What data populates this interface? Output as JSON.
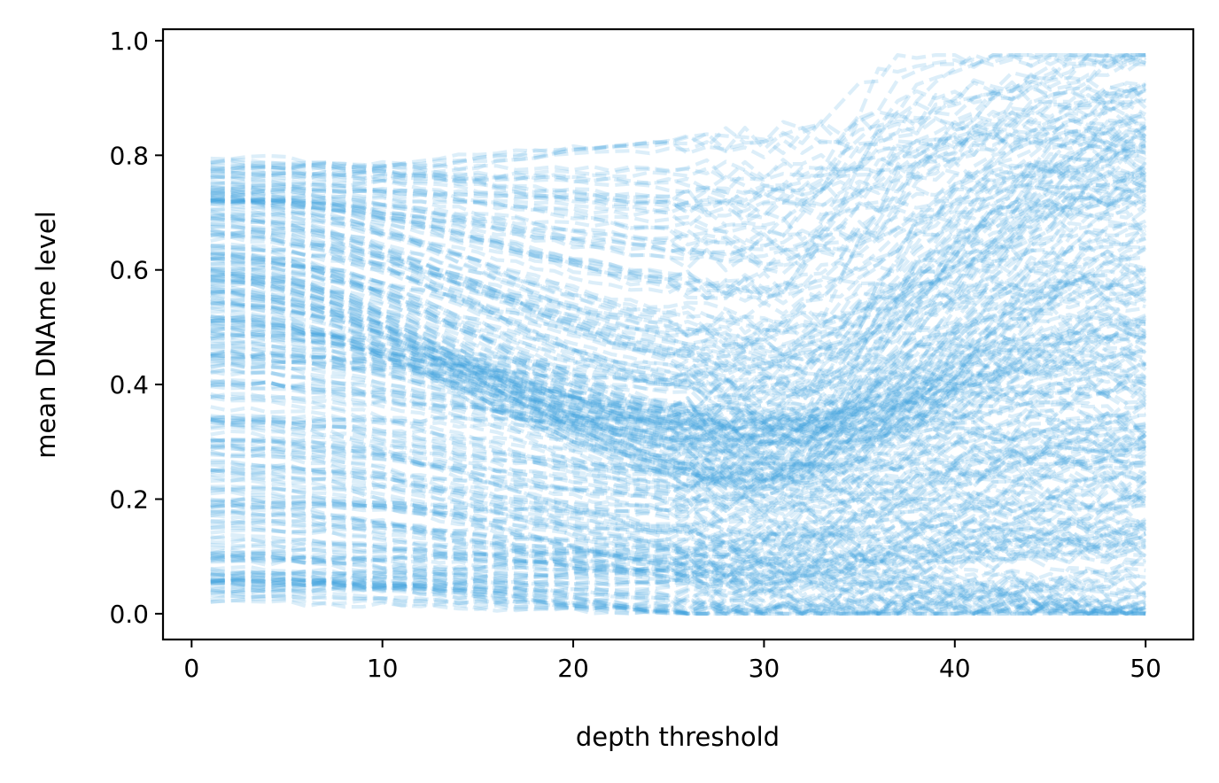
{
  "chart_data": {
    "type": "line",
    "title": "",
    "xlabel": "depth threshold",
    "ylabel": "mean DNAme level",
    "xlim": [
      -1.5,
      52.5
    ],
    "ylim": [
      -0.045,
      1.02
    ],
    "xticks": [
      0,
      10,
      20,
      30,
      40,
      50
    ],
    "xtick_labels": [
      "0",
      "10",
      "20",
      "30",
      "40",
      "50"
    ],
    "yticks": [
      0.0,
      0.2,
      0.4,
      0.6,
      0.8,
      1.0
    ],
    "ytick_labels": [
      "0.0",
      "0.2",
      "0.4",
      "0.6",
      "0.8",
      "1.0"
    ],
    "grid": false,
    "legend": "none",
    "line_style": "dashed",
    "line_color": "#3ba3e0",
    "line_alpha": 0.18,
    "x": [
      1,
      2,
      3,
      4,
      5,
      6,
      7,
      8,
      9,
      10,
      11,
      12,
      13,
      14,
      15,
      16,
      17,
      18,
      19,
      20,
      21,
      22,
      23,
      24,
      25,
      26,
      27,
      28,
      29,
      30,
      31,
      32,
      33,
      34,
      35,
      36,
      37,
      38,
      39,
      40,
      41,
      42,
      43,
      44,
      45,
      46,
      47,
      48,
      49,
      50
    ],
    "series_description": "hundreds of overlapping dashed series; representative trajectories (start value, value at depth ~30, final value) listed",
    "series": [
      {
        "start": 0.78,
        "mid": 0.74,
        "end": 0.97
      },
      {
        "start": 0.76,
        "mid": 0.78,
        "end": 0.95
      },
      {
        "start": 0.75,
        "mid": 0.7,
        "end": 0.88
      },
      {
        "start": 0.73,
        "mid": 0.62,
        "end": 0.86
      },
      {
        "start": 0.72,
        "mid": 0.55,
        "end": 0.84
      },
      {
        "start": 0.7,
        "mid": 0.5,
        "end": 0.8
      },
      {
        "start": 0.68,
        "mid": 0.45,
        "end": 0.78
      },
      {
        "start": 0.66,
        "mid": 0.42,
        "end": 0.76
      },
      {
        "start": 0.64,
        "mid": 0.38,
        "end": 0.73
      },
      {
        "start": 0.62,
        "mid": 0.35,
        "end": 0.7
      },
      {
        "start": 0.6,
        "mid": 0.32,
        "end": 0.66
      },
      {
        "start": 0.58,
        "mid": 0.3,
        "end": 0.62
      },
      {
        "start": 0.56,
        "mid": 0.28,
        "end": 0.58
      },
      {
        "start": 0.54,
        "mid": 0.26,
        "end": 0.55
      },
      {
        "start": 0.52,
        "mid": 0.25,
        "end": 0.52
      },
      {
        "start": 0.5,
        "mid": 0.3,
        "end": 0.48
      },
      {
        "start": 0.48,
        "mid": 0.33,
        "end": 0.45
      },
      {
        "start": 0.46,
        "mid": 0.36,
        "end": 0.42
      },
      {
        "start": 0.44,
        "mid": 0.34,
        "end": 0.38
      },
      {
        "start": 0.41,
        "mid": 0.3,
        "end": 0.35
      },
      {
        "start": 0.36,
        "mid": 0.28,
        "end": 0.32
      },
      {
        "start": 0.32,
        "mid": 0.2,
        "end": 0.3
      },
      {
        "start": 0.3,
        "mid": 0.18,
        "end": 0.25
      },
      {
        "start": 0.27,
        "mid": 0.15,
        "end": 0.24
      },
      {
        "start": 0.24,
        "mid": 0.14,
        "end": 0.19
      },
      {
        "start": 0.21,
        "mid": 0.12,
        "end": 0.18
      },
      {
        "start": 0.18,
        "mid": 0.1,
        "end": 0.16
      },
      {
        "start": 0.14,
        "mid": 0.09,
        "end": 0.12
      },
      {
        "start": 0.1,
        "mid": 0.08,
        "end": 0.08
      },
      {
        "start": 0.08,
        "mid": 0.05,
        "end": 0.05
      },
      {
        "start": 0.06,
        "mid": 0.04,
        "end": 0.04
      },
      {
        "start": 0.05,
        "mid": 0.03,
        "end": 0.01
      },
      {
        "start": 0.04,
        "mid": 0.02,
        "end": 0.0
      }
    ]
  }
}
